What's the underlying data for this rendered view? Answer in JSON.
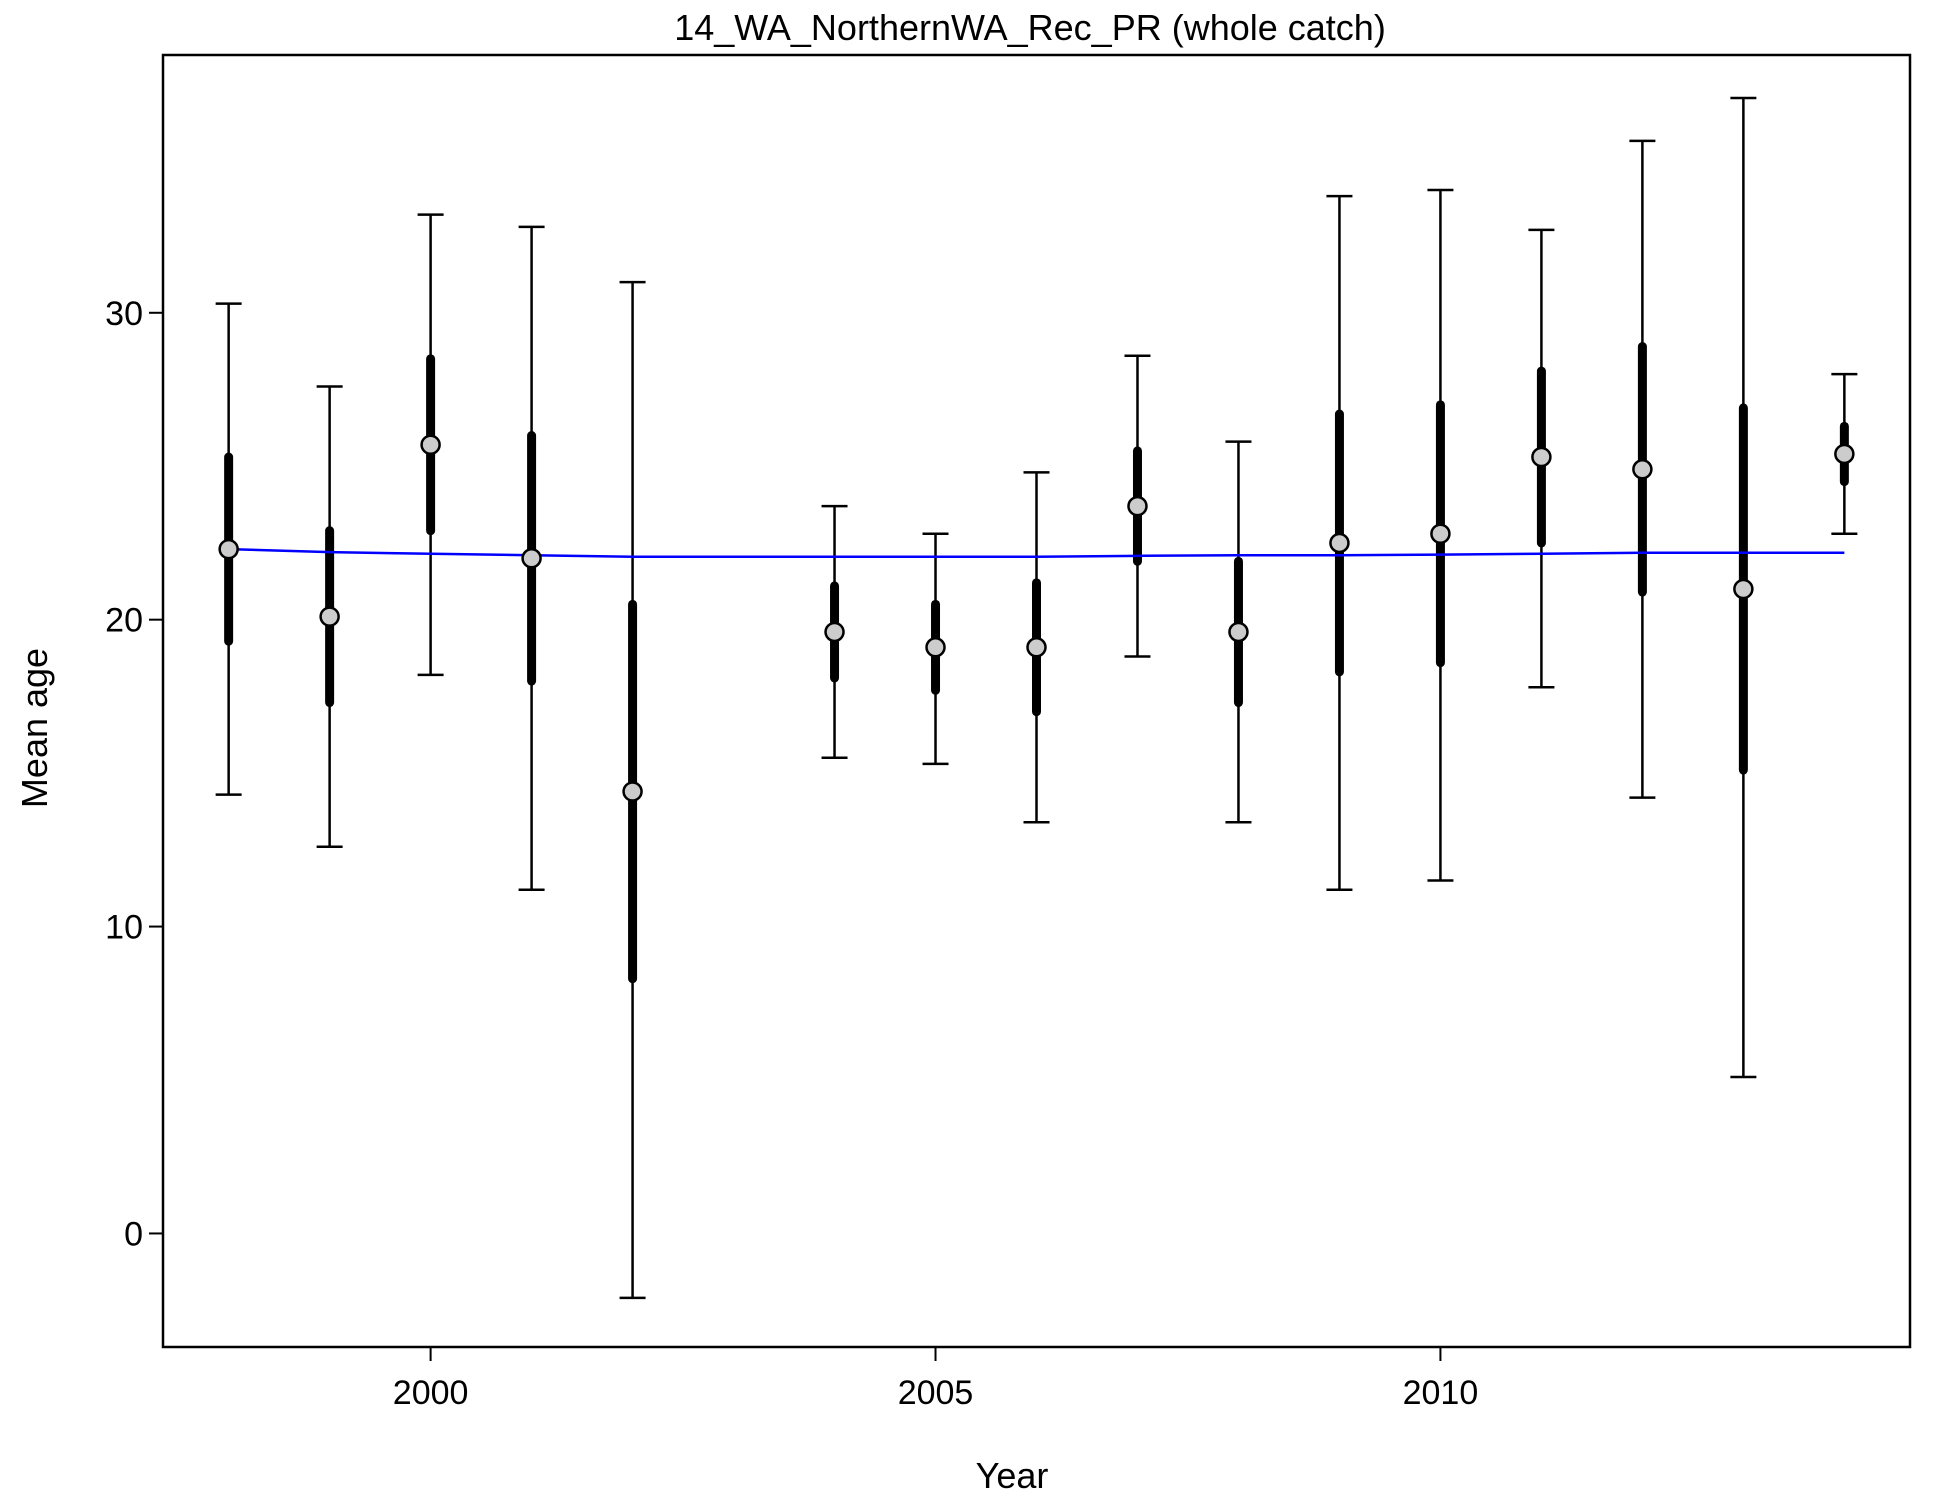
{
  "chart_data": {
    "type": "scatter",
    "title": "14_WA_NorthernWA_Rec_PR (whole catch)",
    "xlabel": "Year",
    "ylabel": "Mean age",
    "xlim": [
      1997.35,
      2014.65
    ],
    "ylim": [
      -3.7,
      38.4
    ],
    "xticks": [
      2000,
      2005,
      2010
    ],
    "yticks": [
      0,
      10,
      20,
      30
    ],
    "grid": false,
    "colors": {
      "points": "#cccccc",
      "fit_line": "#0000ff",
      "bars": "#000000"
    },
    "observed": [
      {
        "year": 1998,
        "mean": 22.3,
        "inner": [
          19.3,
          25.3
        ],
        "outer": [
          14.3,
          30.3
        ]
      },
      {
        "year": 1999,
        "mean": 20.1,
        "inner": [
          17.3,
          22.9
        ],
        "outer": [
          12.6,
          27.6
        ]
      },
      {
        "year": 2000,
        "mean": 25.7,
        "inner": [
          22.9,
          28.5
        ],
        "outer": [
          18.2,
          33.2
        ]
      },
      {
        "year": 2001,
        "mean": 22.0,
        "inner": [
          18.0,
          26.0
        ],
        "outer": [
          11.2,
          32.8
        ]
      },
      {
        "year": 2002,
        "mean": 14.4,
        "inner": [
          8.3,
          20.5
        ],
        "outer": [
          -2.1,
          31.0
        ]
      },
      {
        "year": 2004,
        "mean": 19.6,
        "inner": [
          18.1,
          21.1
        ],
        "outer": [
          15.5,
          23.7
        ]
      },
      {
        "year": 2005,
        "mean": 19.1,
        "inner": [
          17.7,
          20.5
        ],
        "outer": [
          15.3,
          22.8
        ]
      },
      {
        "year": 2006,
        "mean": 19.1,
        "inner": [
          17.0,
          21.2
        ],
        "outer": [
          13.4,
          24.8
        ]
      },
      {
        "year": 2007,
        "mean": 23.7,
        "inner": [
          21.9,
          25.5
        ],
        "outer": [
          18.8,
          28.6
        ]
      },
      {
        "year": 2008,
        "mean": 19.6,
        "inner": [
          17.3,
          21.9
        ],
        "outer": [
          13.4,
          25.8
        ]
      },
      {
        "year": 2009,
        "mean": 22.5,
        "inner": [
          18.3,
          26.7
        ],
        "outer": [
          11.2,
          33.8
        ]
      },
      {
        "year": 2010,
        "mean": 22.8,
        "inner": [
          18.6,
          27.0
        ],
        "outer": [
          11.5,
          34.0
        ]
      },
      {
        "year": 2011,
        "mean": 25.3,
        "inner": [
          22.5,
          28.1
        ],
        "outer": [
          17.8,
          32.7
        ]
      },
      {
        "year": 2012,
        "mean": 24.9,
        "inner": [
          20.9,
          28.9
        ],
        "outer": [
          14.2,
          35.6
        ]
      },
      {
        "year": 2013,
        "mean": 21.0,
        "inner": [
          15.1,
          26.9
        ],
        "outer": [
          5.1,
          37.0
        ]
      },
      {
        "year": 2014,
        "mean": 25.4,
        "inner": [
          24.5,
          26.3
        ],
        "outer": [
          22.8,
          28.0
        ]
      }
    ],
    "fitted": {
      "x": [
        1998,
        1999,
        2000,
        2001,
        2002,
        2003,
        2004,
        2005,
        2006,
        2007,
        2008,
        2009,
        2010,
        2011,
        2012,
        2013,
        2014
      ],
      "y": [
        22.3,
        22.2,
        22.15,
        22.1,
        22.05,
        22.05,
        22.05,
        22.05,
        22.05,
        22.08,
        22.1,
        22.1,
        22.12,
        22.15,
        22.18,
        22.18,
        22.18
      ]
    }
  }
}
